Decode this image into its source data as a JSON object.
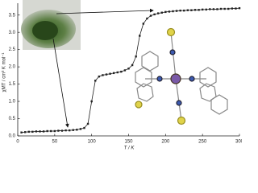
{
  "chart_data": {
    "type": "line",
    "x_label": "T / K",
    "y_label": "χMT / cm³ K mol⁻¹",
    "x": [
      5,
      10,
      15,
      20,
      25,
      30,
      35,
      40,
      45,
      50,
      55,
      60,
      65,
      70,
      75,
      80,
      85,
      90,
      95,
      100,
      105,
      110,
      115,
      120,
      125,
      130,
      135,
      140,
      145,
      150,
      155,
      160,
      165,
      170,
      175,
      180,
      185,
      190,
      195,
      200,
      205,
      210,
      215,
      220,
      225,
      230,
      235,
      240,
      245,
      250,
      255,
      260,
      265,
      270,
      275,
      280,
      285,
      290,
      295,
      300
    ],
    "series": [
      {
        "color": "#222222",
        "values": [
          0.1,
          0.11,
          0.12,
          0.12,
          0.13,
          0.13,
          0.13,
          0.14,
          0.14,
          0.14,
          0.15,
          0.15,
          0.16,
          0.16,
          0.17,
          0.18,
          0.2,
          0.23,
          0.35,
          1.0,
          1.6,
          1.72,
          1.76,
          1.78,
          1.8,
          1.82,
          1.84,
          1.86,
          1.9,
          1.95,
          2.05,
          2.3,
          2.9,
          3.25,
          3.4,
          3.48,
          3.52,
          3.55,
          3.57,
          3.59,
          3.6,
          3.61,
          3.62,
          3.63,
          3.63,
          3.64,
          3.64,
          3.65,
          3.65,
          3.66,
          3.66,
          3.67,
          3.67,
          3.67,
          3.68,
          3.68,
          3.68,
          3.69,
          3.69,
          3.7
        ]
      }
    ],
    "xlim": [
      0,
      300
    ],
    "xticks": [
      0,
      50,
      100,
      150,
      200,
      250,
      300
    ],
    "ylim": [
      0,
      3.75
    ],
    "yticks": [
      {
        "value": 0,
        "label": "0.0"
      },
      0.5,
      {
        "value": 1,
        "label": "1.0"
      },
      1.5,
      {
        "value": 2,
        "label": "2.0"
      },
      2.5,
      {
        "value": 3,
        "label": "3.0"
      },
      3.5
    ],
    "grid": false
  }
}
